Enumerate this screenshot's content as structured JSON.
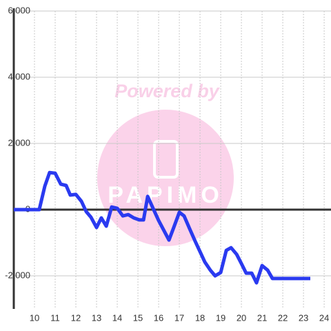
{
  "chart_data": {
    "type": "line",
    "watermark": {
      "title": "Powered by",
      "brand": "PAPIMO"
    },
    "x": [
      9,
      10.23,
      10.5,
      10.73,
      11,
      11.27,
      11.53,
      11.73,
      12,
      12.27,
      12.5,
      12.73,
      13,
      13.23,
      13.47,
      13.73,
      14,
      14.27,
      14.53,
      14.8,
      15.07,
      15.27,
      15.47,
      15.73,
      16,
      16.23,
      16.5,
      16.73,
      17,
      17.23,
      17.5,
      17.77,
      18,
      18.23,
      18.5,
      18.73,
      19,
      19.27,
      19.5,
      19.77,
      20,
      20.23,
      20.5,
      20.73,
      21,
      21.27,
      21.5,
      23.33
    ],
    "series": [
      {
        "color": "#2a3af0",
        "values": [
          0,
          0,
          710,
          1120,
          1100,
          770,
          730,
          440,
          460,
          250,
          -60,
          -230,
          -540,
          -250,
          -500,
          80,
          40,
          -190,
          -150,
          -250,
          -310,
          -310,
          400,
          40,
          -330,
          -600,
          -920,
          -540,
          -80,
          -190,
          -580,
          -960,
          -1270,
          -1580,
          -1830,
          -2000,
          -1900,
          -1230,
          -1150,
          -1350,
          -1630,
          -1920,
          -1920,
          -2210,
          -1690,
          -1830,
          -2080,
          -2080
        ]
      }
    ],
    "xlim": [
      9,
      24.33
    ],
    "xticks": [
      10,
      11,
      12,
      13,
      14,
      15,
      16,
      17,
      18,
      19,
      20,
      21,
      22,
      23,
      24
    ],
    "ylim": [
      -3000,
      6000
    ],
    "yticks": [
      {
        "value": -2000,
        "label": "-2,000"
      },
      0,
      {
        "value": 2000,
        "label": "2,000"
      },
      {
        "value": 4000,
        "label": "4,000"
      },
      {
        "value": 6000,
        "label": "6,000"
      }
    ],
    "grid": true
  }
}
